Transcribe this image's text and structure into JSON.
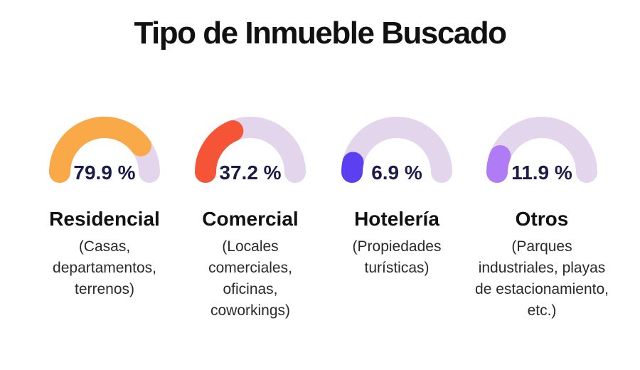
{
  "title": "Tipo de Inmueble Buscado",
  "chart_data": {
    "type": "gauge",
    "title": "Tipo de Inmueble Buscado",
    "unit": "%",
    "track_color": "#e3d6ec",
    "items": [
      {
        "name": "Residencial",
        "value": 79.9,
        "label": "79.9 %",
        "description": "(Casas, departamentos, terrenos)",
        "color": "#f9a947"
      },
      {
        "name": "Comercial",
        "value": 37.2,
        "label": "37.2 %",
        "description": "(Locales comerciales, oficinas, coworkings)",
        "color": "#f55536"
      },
      {
        "name": "Hotelería",
        "value": 6.9,
        "label": "6.9 %",
        "description": "(Propiedades turísticas)",
        "color": "#5b3ff0"
      },
      {
        "name": "Otros",
        "value": 11.9,
        "label": "11.9 %",
        "description": "(Parques industriales, playas de estacionamiento, etc.)",
        "color": "#b07cf6"
      }
    ]
  }
}
